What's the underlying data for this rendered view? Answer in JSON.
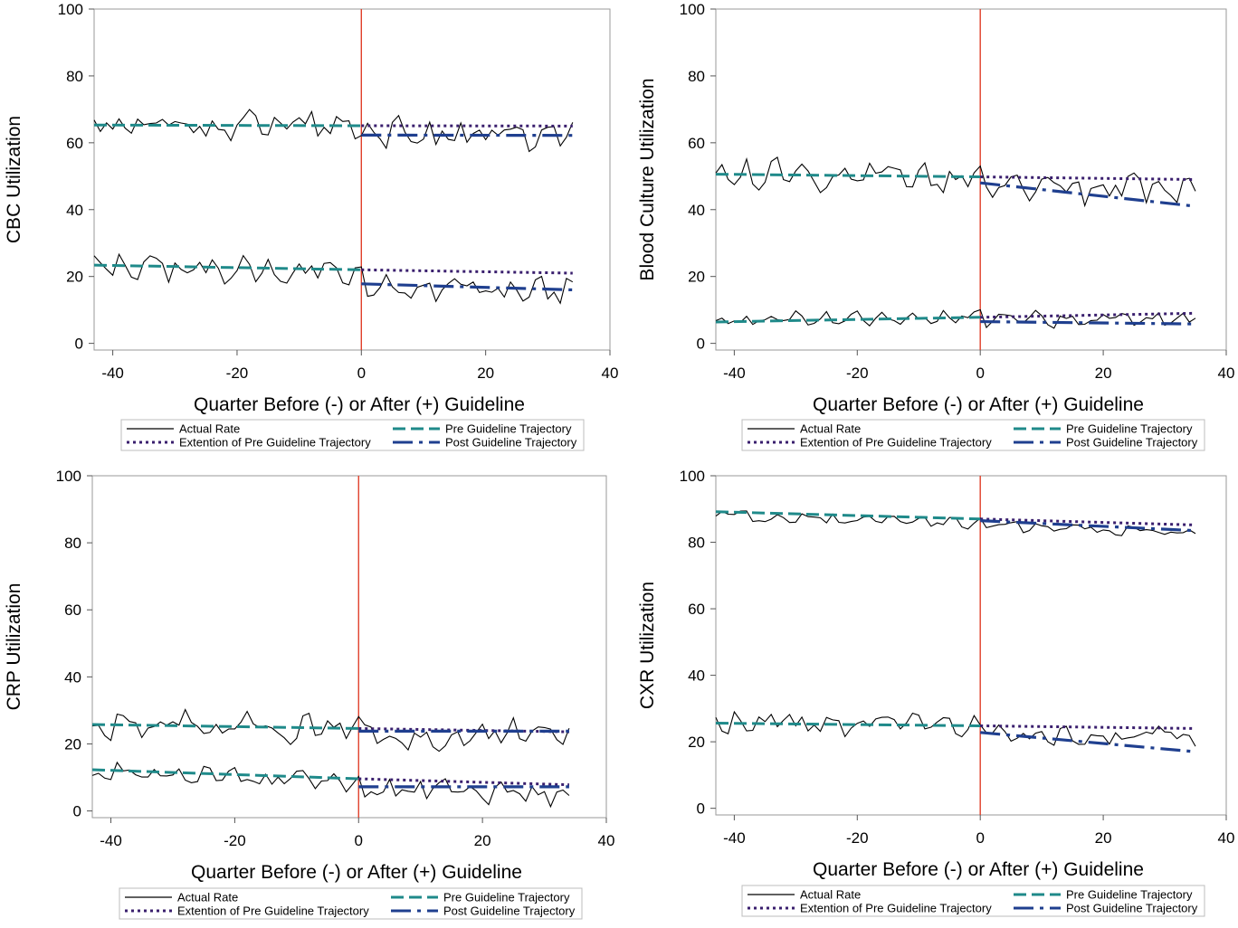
{
  "style": {
    "actual_color": "#000000",
    "pre_color": "#1f8a8a",
    "extension_color": "#3a1f6e",
    "post_color": "#1f3f8f",
    "guideline_line_color": "#e0402a",
    "frame_color": "#9a9a9a"
  },
  "legend": {
    "actual": "Actual Rate",
    "extension": "Extention of Pre Guideline Trajectory",
    "pre": "Pre Guideline Trajectory",
    "post": "Post Guideline Trajectory"
  },
  "chart_data": [
    {
      "type": "line",
      "xlabel": "Quarter Before (-) or After (+) Guideline",
      "ylabel": "CBC Utilization",
      "xlim": [
        -43,
        40
      ],
      "ylim": [
        -2,
        100
      ],
      "xticks": [
        -40,
        -20,
        0,
        20,
        40
      ],
      "yticks": [
        0,
        20,
        40,
        60,
        80,
        100
      ],
      "guideline_x": 0,
      "groups": [
        {
          "actual": {
            "x_start": -43,
            "x_end": 34,
            "mean": 65,
            "slope": 0,
            "amp": 3.6,
            "phase": 0.3,
            "post_shift": -2.5
          },
          "pre_trajectory": [
            [
              -43,
              65.3
            ],
            [
              0,
              65.1
            ]
          ],
          "extension": [
            [
              0,
              65.1
            ],
            [
              34,
              65
            ]
          ],
          "post_trajectory": [
            [
              0,
              62.3
            ],
            [
              34,
              62.2
            ]
          ]
        },
        {
          "actual": {
            "x_start": -43,
            "x_end": 34,
            "mean": 23,
            "slope": -0.03,
            "amp": 3,
            "phase": 1.7,
            "post_shift": -5
          },
          "pre_trajectory": [
            [
              -43,
              23.4
            ],
            [
              0,
              22
            ]
          ],
          "extension": [
            [
              0,
              22
            ],
            [
              34,
              21
            ]
          ],
          "post_trajectory": [
            [
              0,
              17.8
            ],
            [
              34,
              16
            ]
          ]
        }
      ]
    },
    {
      "type": "line",
      "xlabel": "Quarter Before (-) or After (+) Guideline",
      "ylabel": "Blood Culture Utilization",
      "xlim": [
        -43,
        40
      ],
      "ylim": [
        -2,
        100
      ],
      "xticks": [
        -40,
        -20,
        0,
        20,
        40
      ],
      "yticks": [
        0,
        20,
        40,
        60,
        80,
        100
      ],
      "guideline_x": 0,
      "groups": [
        {
          "actual": {
            "x_start": -43,
            "x_end": 35,
            "mean": 50.5,
            "slope": -0.02,
            "amp": 3.5,
            "phase": 0.9,
            "post_shift": -3
          },
          "pre_trajectory": [
            [
              -43,
              50.6
            ],
            [
              0,
              49.8
            ]
          ],
          "extension": [
            [
              0,
              49.8
            ],
            [
              35,
              49
            ]
          ],
          "post_trajectory": [
            [
              0,
              48
            ],
            [
              35,
              41
            ]
          ]
        },
        {
          "actual": {
            "x_start": -43,
            "x_end": 35,
            "mean": 7,
            "slope": 0.02,
            "amp": 1.8,
            "phase": 2.4,
            "post_shift": -1
          },
          "pre_trajectory": [
            [
              -43,
              6.4
            ],
            [
              0,
              7.8
            ]
          ],
          "extension": [
            [
              0,
              7.8
            ],
            [
              35,
              9
            ]
          ],
          "post_trajectory": [
            [
              0,
              6.5
            ],
            [
              35,
              5.8
            ]
          ]
        }
      ]
    },
    {
      "type": "line",
      "xlabel": "Quarter Before (-) or After (+) Guideline",
      "ylabel": "CRP Utilization",
      "xlim": [
        -43,
        40
      ],
      "ylim": [
        -2,
        100
      ],
      "xticks": [
        -40,
        -20,
        0,
        20,
        40
      ],
      "yticks": [
        0,
        20,
        40,
        60,
        80,
        100
      ],
      "guideline_x": 0,
      "groups": [
        {
          "actual": {
            "x_start": -43,
            "x_end": 34,
            "mean": 25.5,
            "slope": -0.02,
            "amp": 3.5,
            "phase": 0.5,
            "post_shift": -1.5
          },
          "pre_trajectory": [
            [
              -43,
              25.8
            ],
            [
              0,
              24.6
            ]
          ],
          "extension": [
            [
              0,
              24.6
            ],
            [
              34,
              23.6
            ]
          ],
          "post_trajectory": [
            [
              0,
              23.8
            ],
            [
              34,
              23.8
            ]
          ]
        },
        {
          "actual": {
            "x_start": -43,
            "x_end": 34,
            "mean": 11.5,
            "slope": -0.06,
            "amp": 2.5,
            "phase": 2.0,
            "post_shift": -2
          },
          "pre_trajectory": [
            [
              -43,
              12.3
            ],
            [
              0,
              9.6
            ]
          ],
          "extension": [
            [
              0,
              9.6
            ],
            [
              34,
              7.8
            ]
          ],
          "post_trajectory": [
            [
              0,
              7.2
            ],
            [
              34,
              7.2
            ]
          ]
        }
      ]
    },
    {
      "type": "line",
      "xlabel": "Quarter Before (-) or After (+) Guideline",
      "ylabel": "CXR Utilization",
      "xlim": [
        -43,
        40
      ],
      "ylim": [
        -2,
        100
      ],
      "xticks": [
        -40,
        -20,
        0,
        20,
        40
      ],
      "yticks": [
        0,
        20,
        40,
        60,
        80,
        100
      ],
      "guideline_x": 0,
      "groups": [
        {
          "actual": {
            "x_start": -43,
            "x_end": 35,
            "mean": 88,
            "slope": -0.06,
            "amp": 1.3,
            "phase": 1.1,
            "post_shift": -0.5
          },
          "pre_trajectory": [
            [
              -43,
              89.2
            ],
            [
              0,
              87
            ]
          ],
          "extension": [
            [
              0,
              87
            ],
            [
              35,
              85.2
            ]
          ],
          "post_trajectory": [
            [
              0,
              86.5
            ],
            [
              35,
              83.5
            ]
          ]
        },
        {
          "actual": {
            "x_start": -43,
            "x_end": 35,
            "mean": 25.5,
            "slope": -0.02,
            "amp": 2.8,
            "phase": 2.8,
            "post_shift": -2.5
          },
          "pre_trajectory": [
            [
              -43,
              25.6
            ],
            [
              0,
              24.8
            ]
          ],
          "extension": [
            [
              0,
              24.8
            ],
            [
              35,
              24
            ]
          ],
          "post_trajectory": [
            [
              0,
              22.8
            ],
            [
              35,
              17
            ]
          ]
        }
      ]
    }
  ]
}
